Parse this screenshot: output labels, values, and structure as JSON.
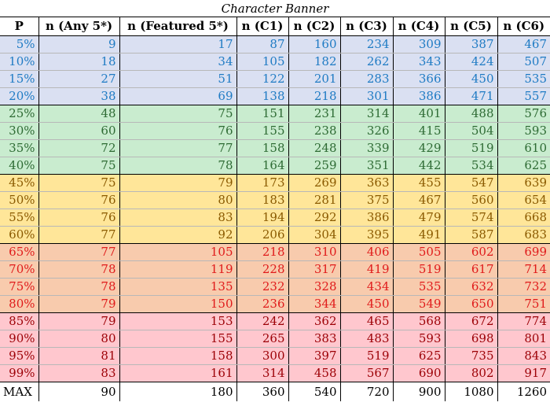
{
  "title": "Character Banner",
  "headers": [
    "P",
    "n (Any 5*)",
    "n (Featured 5*)",
    "n (C1)",
    "n (C2)",
    "n (C3)",
    "n (C4)",
    "n (C5)",
    "n (C6)"
  ],
  "groups": [
    {
      "bg": "#dae0f2",
      "color": "#1f7bc4",
      "rows": [
        [
          "5%",
          "9",
          "17",
          "87",
          "160",
          "234",
          "309",
          "387",
          "467"
        ],
        [
          "10%",
          "18",
          "34",
          "105",
          "182",
          "262",
          "343",
          "424",
          "507"
        ],
        [
          "15%",
          "27",
          "51",
          "122",
          "201",
          "283",
          "366",
          "450",
          "535"
        ],
        [
          "20%",
          "38",
          "69",
          "138",
          "218",
          "301",
          "386",
          "471",
          "557"
        ]
      ]
    },
    {
      "bg": "#c9eccf",
      "color": "#2e6b34",
      "rows": [
        [
          "25%",
          "48",
          "75",
          "151",
          "231",
          "314",
          "401",
          "488",
          "576"
        ],
        [
          "30%",
          "60",
          "76",
          "155",
          "238",
          "326",
          "415",
          "504",
          "593"
        ],
        [
          "35%",
          "72",
          "77",
          "158",
          "248",
          "339",
          "429",
          "519",
          "610"
        ],
        [
          "40%",
          "75",
          "78",
          "164",
          "259",
          "351",
          "442",
          "534",
          "625"
        ]
      ]
    },
    {
      "bg": "#ffe699",
      "color": "#8a5a00",
      "rows": [
        [
          "45%",
          "75",
          "79",
          "173",
          "269",
          "363",
          "455",
          "547",
          "639"
        ],
        [
          "50%",
          "76",
          "80",
          "183",
          "281",
          "375",
          "467",
          "560",
          "654"
        ],
        [
          "55%",
          "76",
          "83",
          "194",
          "292",
          "386",
          "479",
          "574",
          "668"
        ],
        [
          "60%",
          "77",
          "92",
          "206",
          "304",
          "395",
          "491",
          "587",
          "683"
        ]
      ]
    },
    {
      "bg": "#f8cbad",
      "color": "#e01b1b",
      "rows": [
        [
          "65%",
          "77",
          "105",
          "218",
          "310",
          "406",
          "505",
          "602",
          "699"
        ],
        [
          "70%",
          "78",
          "119",
          "228",
          "317",
          "419",
          "519",
          "617",
          "714"
        ],
        [
          "75%",
          "78",
          "135",
          "232",
          "328",
          "434",
          "535",
          "632",
          "732"
        ],
        [
          "80%",
          "79",
          "150",
          "236",
          "344",
          "450",
          "549",
          "650",
          "751"
        ]
      ]
    },
    {
      "bg": "#ffc7ce",
      "color": "#9c0006",
      "rows": [
        [
          "85%",
          "79",
          "153",
          "242",
          "362",
          "465",
          "568",
          "672",
          "774"
        ],
        [
          "90%",
          "80",
          "155",
          "265",
          "383",
          "483",
          "593",
          "698",
          "801"
        ],
        [
          "95%",
          "81",
          "158",
          "300",
          "397",
          "519",
          "625",
          "735",
          "843"
        ],
        [
          "99%",
          "83",
          "161",
          "314",
          "458",
          "567",
          "690",
          "802",
          "917"
        ]
      ]
    }
  ],
  "max_row": [
    "MAX",
    "90",
    "180",
    "360",
    "540",
    "720",
    "900",
    "1080",
    "1260"
  ]
}
